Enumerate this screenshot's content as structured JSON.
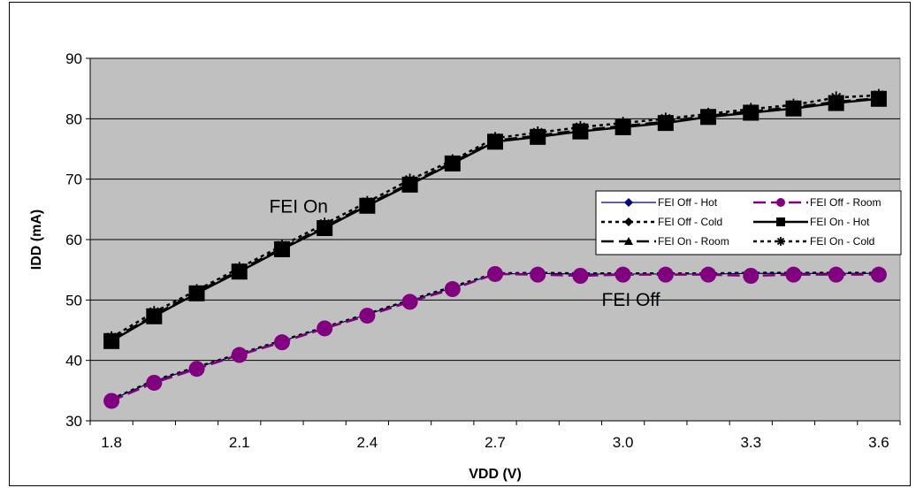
{
  "chart_data": {
    "type": "line",
    "title": "",
    "xlabel": "VDD (V)",
    "ylabel": "IDD (mA)",
    "xlim": [
      1.75,
      3.65
    ],
    "ylim": [
      30,
      90
    ],
    "x_ticks": [
      "1.8",
      "2.1",
      "2.4",
      "2.7",
      "3.0",
      "3.3",
      "3.6"
    ],
    "x_tick_values": [
      1.8,
      2.1,
      2.4,
      2.7,
      3.0,
      3.3,
      3.6
    ],
    "y_ticks": [
      "30",
      "40",
      "50",
      "60",
      "70",
      "80",
      "90"
    ],
    "y_tick_values": [
      30,
      40,
      50,
      60,
      70,
      80,
      90
    ],
    "grid": "horizontal",
    "background": "#c0c0c0",
    "legend_position": "right",
    "annotations": [
      {
        "text": "FEI On",
        "x": 2.17,
        "y": 64.5
      },
      {
        "text": "FEI Off",
        "x": 2.95,
        "y": 49
      }
    ],
    "x": [
      1.8,
      1.9,
      2.0,
      2.1,
      2.2,
      2.3,
      2.4,
      2.5,
      2.6,
      2.7,
      2.8,
      2.9,
      3.0,
      3.1,
      3.2,
      3.3,
      3.4,
      3.5,
      3.6
    ],
    "series": [
      {
        "name": "FEI Off - Hot",
        "color": "#000080",
        "dash": "solid",
        "width": 1.2,
        "marker": "diamond",
        "values": [
          33.5,
          36.6,
          38.8,
          41.0,
          43.2,
          45.4,
          47.6,
          49.9,
          52.0,
          54.3,
          54.4,
          54.3,
          54.3,
          54.3,
          54.3,
          54.4,
          54.4,
          54.4,
          54.4
        ]
      },
      {
        "name": "FEI Off - Room",
        "color": "#800080",
        "dash": "long",
        "width": 2.5,
        "marker": "circle",
        "values": [
          33.3,
          36.3,
          38.6,
          40.9,
          43.0,
          45.3,
          47.4,
          49.7,
          51.8,
          54.3,
          54.2,
          54.0,
          54.2,
          54.2,
          54.2,
          54.0,
          54.2,
          54.2,
          54.2
        ]
      },
      {
        "name": "FEI Off - Cold",
        "color": "#000000",
        "dash": "dotted",
        "width": 2.5,
        "marker": "diamond",
        "values": [
          33.6,
          36.7,
          38.9,
          41.1,
          43.3,
          45.5,
          47.7,
          50.0,
          52.2,
          54.4,
          54.5,
          54.4,
          54.4,
          54.4,
          54.4,
          54.5,
          54.5,
          54.5,
          54.5
        ]
      },
      {
        "name": "FEI On - Hot",
        "color": "#000000",
        "dash": "solid",
        "width": 2.5,
        "marker": "square",
        "values": [
          43.2,
          47.3,
          51.1,
          54.7,
          58.4,
          61.9,
          65.6,
          69.1,
          72.6,
          76.2,
          77.0,
          77.9,
          78.6,
          79.3,
          80.3,
          81.0,
          81.7,
          82.6,
          83.3
        ]
      },
      {
        "name": "FEI On - Room",
        "color": "#000000",
        "dash": "long",
        "width": 2.5,
        "marker": "triangle",
        "values": [
          43.4,
          47.5,
          51.3,
          54.9,
          58.6,
          62.1,
          65.8,
          69.3,
          72.8,
          76.4,
          77.2,
          78.1,
          78.8,
          79.5,
          80.5,
          81.2,
          81.9,
          82.8,
          83.4
        ]
      },
      {
        "name": "FEI On - Cold",
        "color": "#000000",
        "dash": "dotted",
        "width": 2.5,
        "marker": "star",
        "values": [
          43.8,
          48.0,
          51.6,
          55.3,
          59.0,
          62.6,
          66.2,
          69.9,
          73.1,
          76.8,
          77.7,
          78.6,
          79.3,
          80.0,
          80.8,
          81.6,
          82.3,
          83.5,
          83.9
        ]
      }
    ]
  }
}
